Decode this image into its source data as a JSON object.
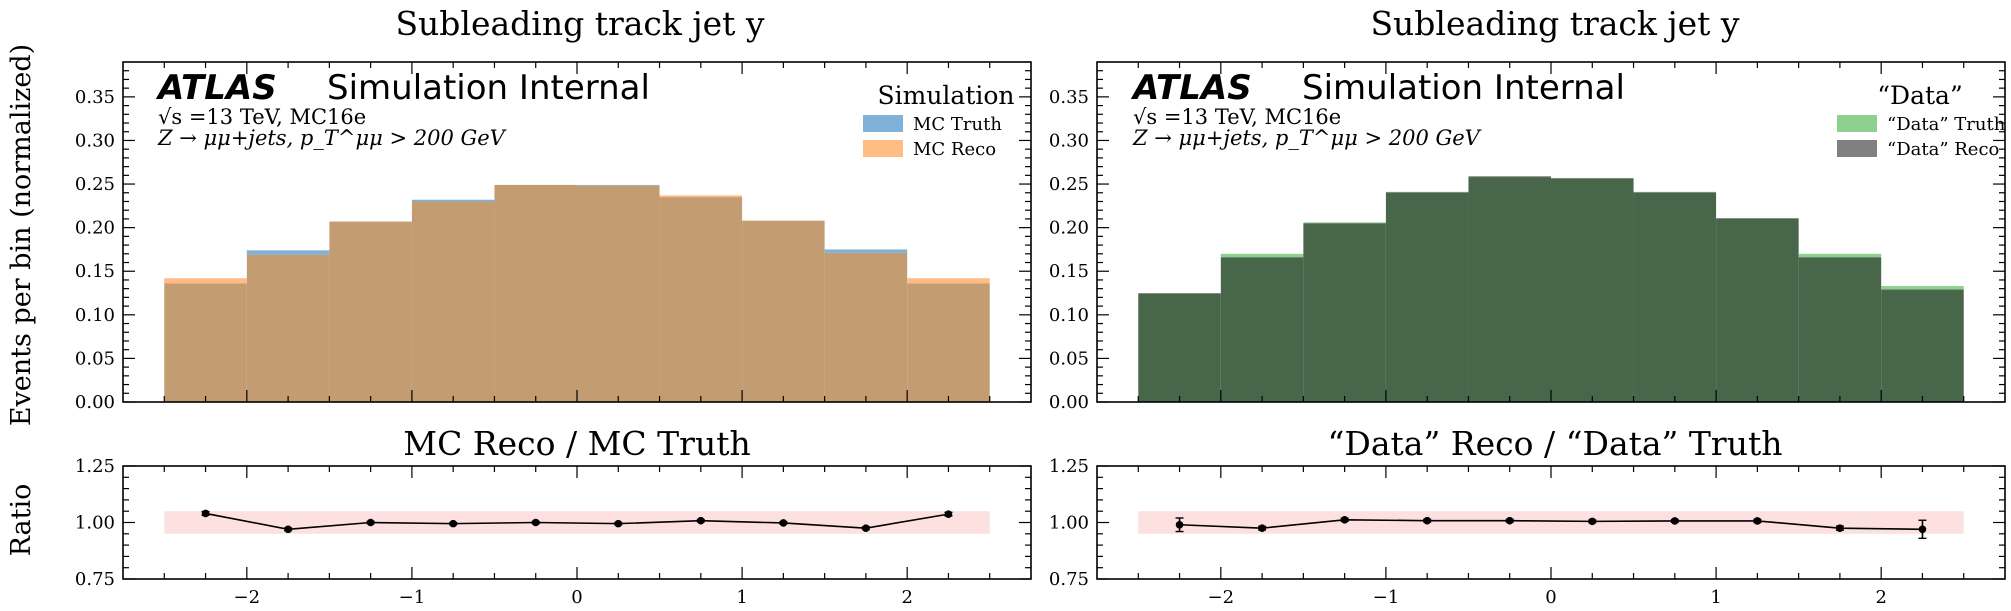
{
  "figure": {
    "ylabel_main": "Events per bin (normalized)",
    "ylabel_ratio": "Ratio"
  },
  "chart_data": [
    {
      "type": "bar",
      "panel": "left-main",
      "title": "Subleading track jet y",
      "atlas_label": "ATLAS",
      "atlas_suffix": "Simulation Internal",
      "info_line1": "√s =13 TeV, MC16e",
      "info_line2": "Z → μμ+jets, p_T^μμ > 200 GeV",
      "legend_title": "Simulation",
      "legend_position": "top-right",
      "bin_edges": [
        -2.5,
        -2.0,
        -1.5,
        -1.0,
        -0.5,
        0.0,
        0.5,
        1.0,
        1.5,
        2.0,
        2.5
      ],
      "ylim": [
        0,
        0.39
      ],
      "yticks": [
        "0.00",
        "0.05",
        "0.10",
        "0.15",
        "0.20",
        "0.25",
        "0.30",
        "0.35"
      ],
      "series": [
        {
          "name": "MC Truth",
          "color": "#7fb1d9",
          "values": [
            0.136,
            0.174,
            0.207,
            0.232,
            0.249,
            0.249,
            0.235,
            0.208,
            0.175,
            0.136
          ]
        },
        {
          "name": "MC Reco",
          "color": "#ffbc85",
          "values": [
            0.142,
            0.169,
            0.207,
            0.23,
            0.249,
            0.248,
            0.237,
            0.208,
            0.171,
            0.142
          ]
        }
      ],
      "overlap_color": "#c49c72"
    },
    {
      "type": "bar",
      "panel": "right-main",
      "title": "Subleading track jet y",
      "atlas_label": "ATLAS",
      "atlas_suffix": "Simulation Internal",
      "info_line1": "√s =13 TeV, MC16e",
      "info_line2": "Z → μμ+jets, p_T^μμ > 200 GeV",
      "legend_title": "“Data”",
      "legend_position": "top-right",
      "bin_edges": [
        -2.5,
        -2.0,
        -1.5,
        -1.0,
        -0.5,
        0.0,
        0.5,
        1.0,
        1.5,
        2.0,
        2.5
      ],
      "ylim": [
        0,
        0.39
      ],
      "yticks": [
        "0.00",
        "0.05",
        "0.10",
        "0.15",
        "0.20",
        "0.25",
        "0.30",
        "0.35"
      ],
      "series": [
        {
          "name": "“Data” Truth",
          "color": "#8fd08f",
          "values": [
            0.124,
            0.17,
            0.206,
            0.24,
            0.258,
            0.256,
            0.24,
            0.21,
            0.17,
            0.133
          ]
        },
        {
          "name": "“Data” Reco",
          "color": "#808080",
          "values": [
            0.125,
            0.166,
            0.205,
            0.241,
            0.259,
            0.257,
            0.241,
            0.211,
            0.166,
            0.129
          ]
        }
      ],
      "overlap_color": "#48674a"
    },
    {
      "type": "scatter",
      "panel": "left-ratio",
      "title": "MC Reco / MC Truth",
      "ylim": [
        0.75,
        1.25
      ],
      "yticks": [
        "0.75",
        "1.00",
        "1.25"
      ],
      "xlim": [
        -2.75,
        2.75
      ],
      "xticks": [
        "−2",
        "−1",
        "0",
        "1",
        "2"
      ],
      "xtick_values": [
        -2,
        -1,
        0,
        1,
        2
      ],
      "band": [
        0.95,
        1.05
      ],
      "band_color": "#fde0e0",
      "x": [
        -2.25,
        -1.75,
        -1.25,
        -0.75,
        -0.25,
        0.25,
        0.75,
        1.25,
        1.75,
        2.25
      ],
      "y": [
        1.04,
        0.97,
        1.0,
        0.995,
        1.0,
        0.995,
        1.008,
        0.998,
        0.975,
        1.037
      ],
      "yerr": [
        0.008,
        0.006,
        0.005,
        0.005,
        0.005,
        0.005,
        0.005,
        0.005,
        0.006,
        0.008
      ]
    },
    {
      "type": "scatter",
      "panel": "right-ratio",
      "title": "“Data” Reco / “Data” Truth",
      "ylim": [
        0.75,
        1.25
      ],
      "yticks": [
        "0.75",
        "1.00",
        "1.25"
      ],
      "xlim": [
        -2.75,
        2.75
      ],
      "xticks": [
        "−2",
        "−1",
        "0",
        "1",
        "2"
      ],
      "xtick_values": [
        -2,
        -1,
        0,
        1,
        2
      ],
      "band": [
        0.95,
        1.05
      ],
      "band_color": "#fde0e0",
      "x": [
        -2.25,
        -1.75,
        -1.25,
        -0.75,
        -0.25,
        0.25,
        0.75,
        1.25,
        1.75,
        2.25
      ],
      "y": [
        0.99,
        0.975,
        1.012,
        1.008,
        1.008,
        1.005,
        1.007,
        1.007,
        0.975,
        0.97
      ],
      "yerr": [
        0.03,
        0.008,
        0.007,
        0.006,
        0.006,
        0.006,
        0.006,
        0.007,
        0.009,
        0.04
      ]
    }
  ]
}
